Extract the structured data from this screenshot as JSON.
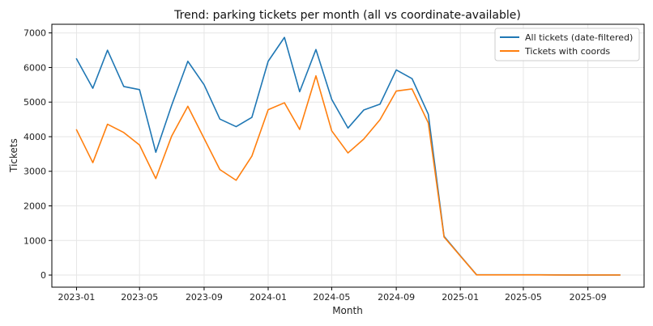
{
  "chart_data": {
    "type": "line",
    "title": "Trend: parking tickets per month (all vs coordinate-available)",
    "xlabel": "Month",
    "ylabel": "Tickets",
    "x": [
      "2023-01",
      "2023-02",
      "2023-03",
      "2023-04",
      "2023-05",
      "2023-06",
      "2023-07",
      "2023-08",
      "2023-09",
      "2023-10",
      "2023-11",
      "2023-12",
      "2024-01",
      "2024-02",
      "2024-03",
      "2024-04",
      "2024-05",
      "2024-06",
      "2024-07",
      "2024-08",
      "2024-09",
      "2024-10",
      "2024-11",
      "2024-12",
      "2025-01",
      "2025-02",
      "2025-03",
      "2025-04",
      "2025-05",
      "2025-06",
      "2025-07",
      "2025-08",
      "2025-09",
      "2025-10",
      "2025-11"
    ],
    "x_ticks": [
      "2023-01",
      "2023-05",
      "2023-09",
      "2024-01",
      "2024-05",
      "2024-09",
      "2025-01",
      "2025-05",
      "2025-09"
    ],
    "y_ticks": [
      0,
      1000,
      2000,
      3000,
      4000,
      5000,
      6000,
      7000
    ],
    "ylim": [
      -350,
      7250
    ],
    "xlim": [
      "2022-11-15",
      "2025-12-17"
    ],
    "grid": true,
    "legend_position": "top-right",
    "series": [
      {
        "name": "All tickets (date-filtered)",
        "color": "#1f77b4",
        "values": [
          6250,
          5400,
          6500,
          5450,
          5360,
          3550,
          4900,
          6180,
          5500,
          4510,
          4290,
          4560,
          6180,
          6870,
          5300,
          6520,
          5080,
          4250,
          4770,
          4940,
          5930,
          5680,
          4650,
          1120,
          560,
          8,
          8,
          8,
          8,
          8,
          5,
          3,
          3,
          3,
          3
        ]
      },
      {
        "name": "Tickets with coords",
        "color": "#ff7f0e",
        "values": [
          4200,
          3250,
          4360,
          4120,
          3760,
          2790,
          4010,
          4880,
          3950,
          3050,
          2740,
          3440,
          4780,
          4980,
          4210,
          5760,
          4170,
          3530,
          3930,
          4490,
          5320,
          5380,
          4400,
          1100,
          550,
          5,
          5,
          5,
          5,
          5,
          3,
          2,
          2,
          2,
          2
        ]
      }
    ]
  }
}
